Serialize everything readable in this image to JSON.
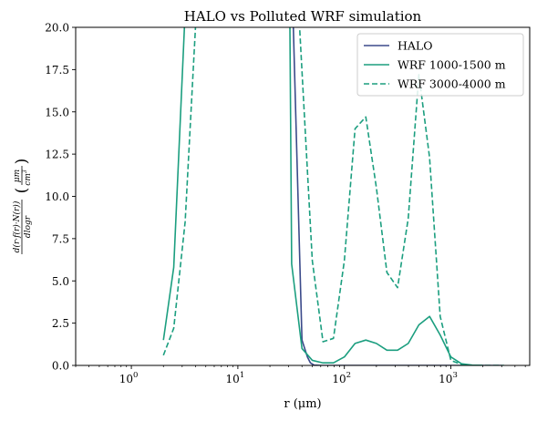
{
  "chart_data": {
    "type": "line",
    "title": "HALO vs Polluted WRF simulation",
    "xlabel": "r (μm)",
    "ylabel_parts": {
      "num": "d(r·f(r)·N(r))",
      "den": "dlogr",
      "unit_num": "μm",
      "unit_den": "cm",
      "unit_sup": "3"
    },
    "xscale": "log",
    "xlim": [
      0.3,
      5500
    ],
    "ylim": [
      0,
      20
    ],
    "xticks": [
      {
        "value": 1,
        "label": "10",
        "exp": "0"
      },
      {
        "value": 10,
        "label": "10",
        "exp": "1"
      },
      {
        "value": 100,
        "label": "10",
        "exp": "2"
      },
      {
        "value": 1000,
        "label": "10",
        "exp": "3"
      }
    ],
    "yticks": [
      {
        "value": 0,
        "label": "0.0"
      },
      {
        "value": 2.5,
        "label": "2.5"
      },
      {
        "value": 5,
        "label": "5.0"
      },
      {
        "value": 7.5,
        "label": "7.5"
      },
      {
        "value": 10,
        "label": "10.0"
      },
      {
        "value": 12.5,
        "label": "12.5"
      },
      {
        "value": 15,
        "label": "15.0"
      },
      {
        "value": 17.5,
        "label": "17.5"
      },
      {
        "value": 20,
        "label": "20.0"
      }
    ],
    "grid": false,
    "legend_position": "top-right",
    "series": [
      {
        "name": "HALO",
        "color": "#3b4a8a",
        "dash": "solid",
        "x": [
          30,
          40,
          45,
          48,
          52,
          60,
          100,
          1000,
          3000
        ],
        "y": [
          30,
          1.5,
          0.5,
          0.15,
          0.02,
          0.0,
          0.0,
          0.0,
          0.0
        ]
      },
      {
        "name": "WRF 1000-1500 m",
        "color": "#1b9e7f",
        "dash": "solid",
        "x": [
          2,
          2.5,
          3.15,
          3.2,
          30,
          32,
          40,
          50,
          63,
          79,
          100,
          126,
          159,
          200,
          251,
          316,
          398,
          501,
          631,
          794,
          1000,
          1259,
          1585,
          2000
        ],
        "y": [
          1.5,
          5.8,
          20,
          30,
          30,
          6.0,
          1.0,
          0.3,
          0.15,
          0.15,
          0.5,
          1.3,
          1.5,
          1.3,
          0.9,
          0.9,
          1.3,
          2.4,
          2.9,
          1.8,
          0.5,
          0.1,
          0.02,
          0.0
        ]
      },
      {
        "name": "WRF 3000-4000 m",
        "color": "#1b9e7f",
        "dash": "dashed",
        "x": [
          2,
          2.5,
          3.2,
          4.0,
          4.1,
          35,
          38,
          50,
          63,
          79,
          100,
          126,
          159,
          200,
          251,
          316,
          398,
          501,
          631,
          794,
          1000,
          1259,
          1585,
          2000,
          2512,
          3162
        ],
        "y": [
          0.6,
          2.2,
          8.5,
          20,
          30,
          30,
          20,
          6.2,
          1.4,
          1.6,
          6.2,
          14.0,
          14.7,
          10.5,
          5.5,
          4.6,
          8.7,
          17.2,
          12.3,
          2.9,
          0.3,
          0.05,
          0.0,
          0.0,
          0.0,
          0.0
        ]
      }
    ]
  }
}
